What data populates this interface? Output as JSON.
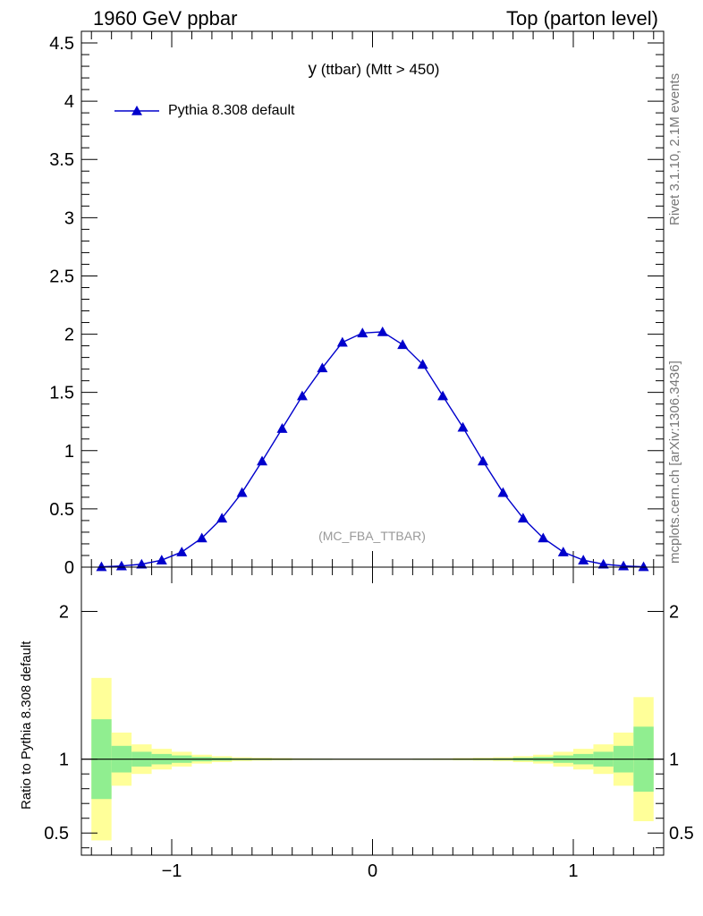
{
  "header": {
    "left": "1960 GeV ppbar",
    "right": "Top (parton level)"
  },
  "side_labels": {
    "rivet": "Rivet 3.1.10,  2.1M events",
    "mcplots": "mcplots.cern.ch [arXiv:1306.3436]"
  },
  "colors": {
    "series": "#0000cc",
    "band_inner": "#90ee90",
    "band_outer": "#ffff99",
    "frame": "#000000"
  },
  "chart_data": [
    {
      "type": "line",
      "title": "y",
      "title_suffix": " (ttbar) (Mtt > 450)",
      "analysis": "(MC_FBA_TTBAR)",
      "xlabel": "",
      "ylabel": "",
      "xlim": [
        -1.45,
        1.45
      ],
      "ylim": [
        0,
        4.6
      ],
      "yticks": [
        0,
        0.5,
        1,
        1.5,
        2,
        2.5,
        3,
        3.5,
        4,
        4.5
      ],
      "ytick_labels": [
        "0",
        "0.5",
        "1",
        "1.5",
        "2",
        "2.5",
        "3",
        "3.5",
        "4",
        "4.5"
      ],
      "grid": false,
      "legend": "top-left",
      "series": [
        {
          "name": "Pythia 8.308 default",
          "marker": "triangle",
          "x": [
            -1.35,
            -1.25,
            -1.15,
            -1.05,
            -0.95,
            -0.85,
            -0.75,
            -0.65,
            -0.55,
            -0.45,
            -0.35,
            -0.25,
            -0.15,
            -0.05,
            0.05,
            0.15,
            0.25,
            0.35,
            0.45,
            0.55,
            0.65,
            0.75,
            0.85,
            0.95,
            1.05,
            1.15,
            1.25,
            1.35
          ],
          "y": [
            0.003,
            0.01,
            0.025,
            0.06,
            0.13,
            0.25,
            0.42,
            0.64,
            0.91,
            1.19,
            1.47,
            1.71,
            1.93,
            2.01,
            2.02,
            1.91,
            1.74,
            1.47,
            1.2,
            0.91,
            0.64,
            0.42,
            0.25,
            0.13,
            0.06,
            0.025,
            0.01,
            0.003
          ]
        }
      ]
    },
    {
      "type": "area",
      "ylabel": "Ratio to Pythia 8.308 default",
      "xlim": [
        -1.45,
        1.45
      ],
      "ylim": [
        0.35,
        2.3
      ],
      "xticks": [
        -1,
        0,
        1
      ],
      "xtick_labels": [
        "−1",
        "0",
        "1"
      ],
      "yticks": [
        0.5,
        1,
        2
      ],
      "ytick_labels": [
        "0.5",
        "1",
        "2"
      ],
      "reference_line": 1,
      "bins": [
        -1.4,
        -1.3,
        -1.2,
        -1.1,
        -1.0,
        -0.9,
        -0.8,
        -0.7,
        -0.6,
        -0.5,
        -0.4,
        -0.3,
        -0.2,
        -0.1,
        0.0,
        0.1,
        0.2,
        0.3,
        0.4,
        0.5,
        0.6,
        0.7,
        0.8,
        0.9,
        1.0,
        1.1,
        1.2,
        1.3,
        1.4
      ],
      "band_inner": [
        0.27,
        0.09,
        0.05,
        0.035,
        0.025,
        0.015,
        0.01,
        0.006,
        0.005,
        0.004,
        0.003,
        0.003,
        0.002,
        0.002,
        0.002,
        0.002,
        0.003,
        0.003,
        0.004,
        0.005,
        0.006,
        0.01,
        0.015,
        0.025,
        0.035,
        0.05,
        0.09,
        0.22
      ],
      "band_outer": [
        0.55,
        0.18,
        0.1,
        0.07,
        0.05,
        0.03,
        0.02,
        0.013,
        0.01,
        0.008,
        0.006,
        0.005,
        0.004,
        0.004,
        0.004,
        0.004,
        0.005,
        0.006,
        0.008,
        0.01,
        0.013,
        0.02,
        0.03,
        0.05,
        0.07,
        0.1,
        0.18,
        0.42
      ]
    }
  ]
}
